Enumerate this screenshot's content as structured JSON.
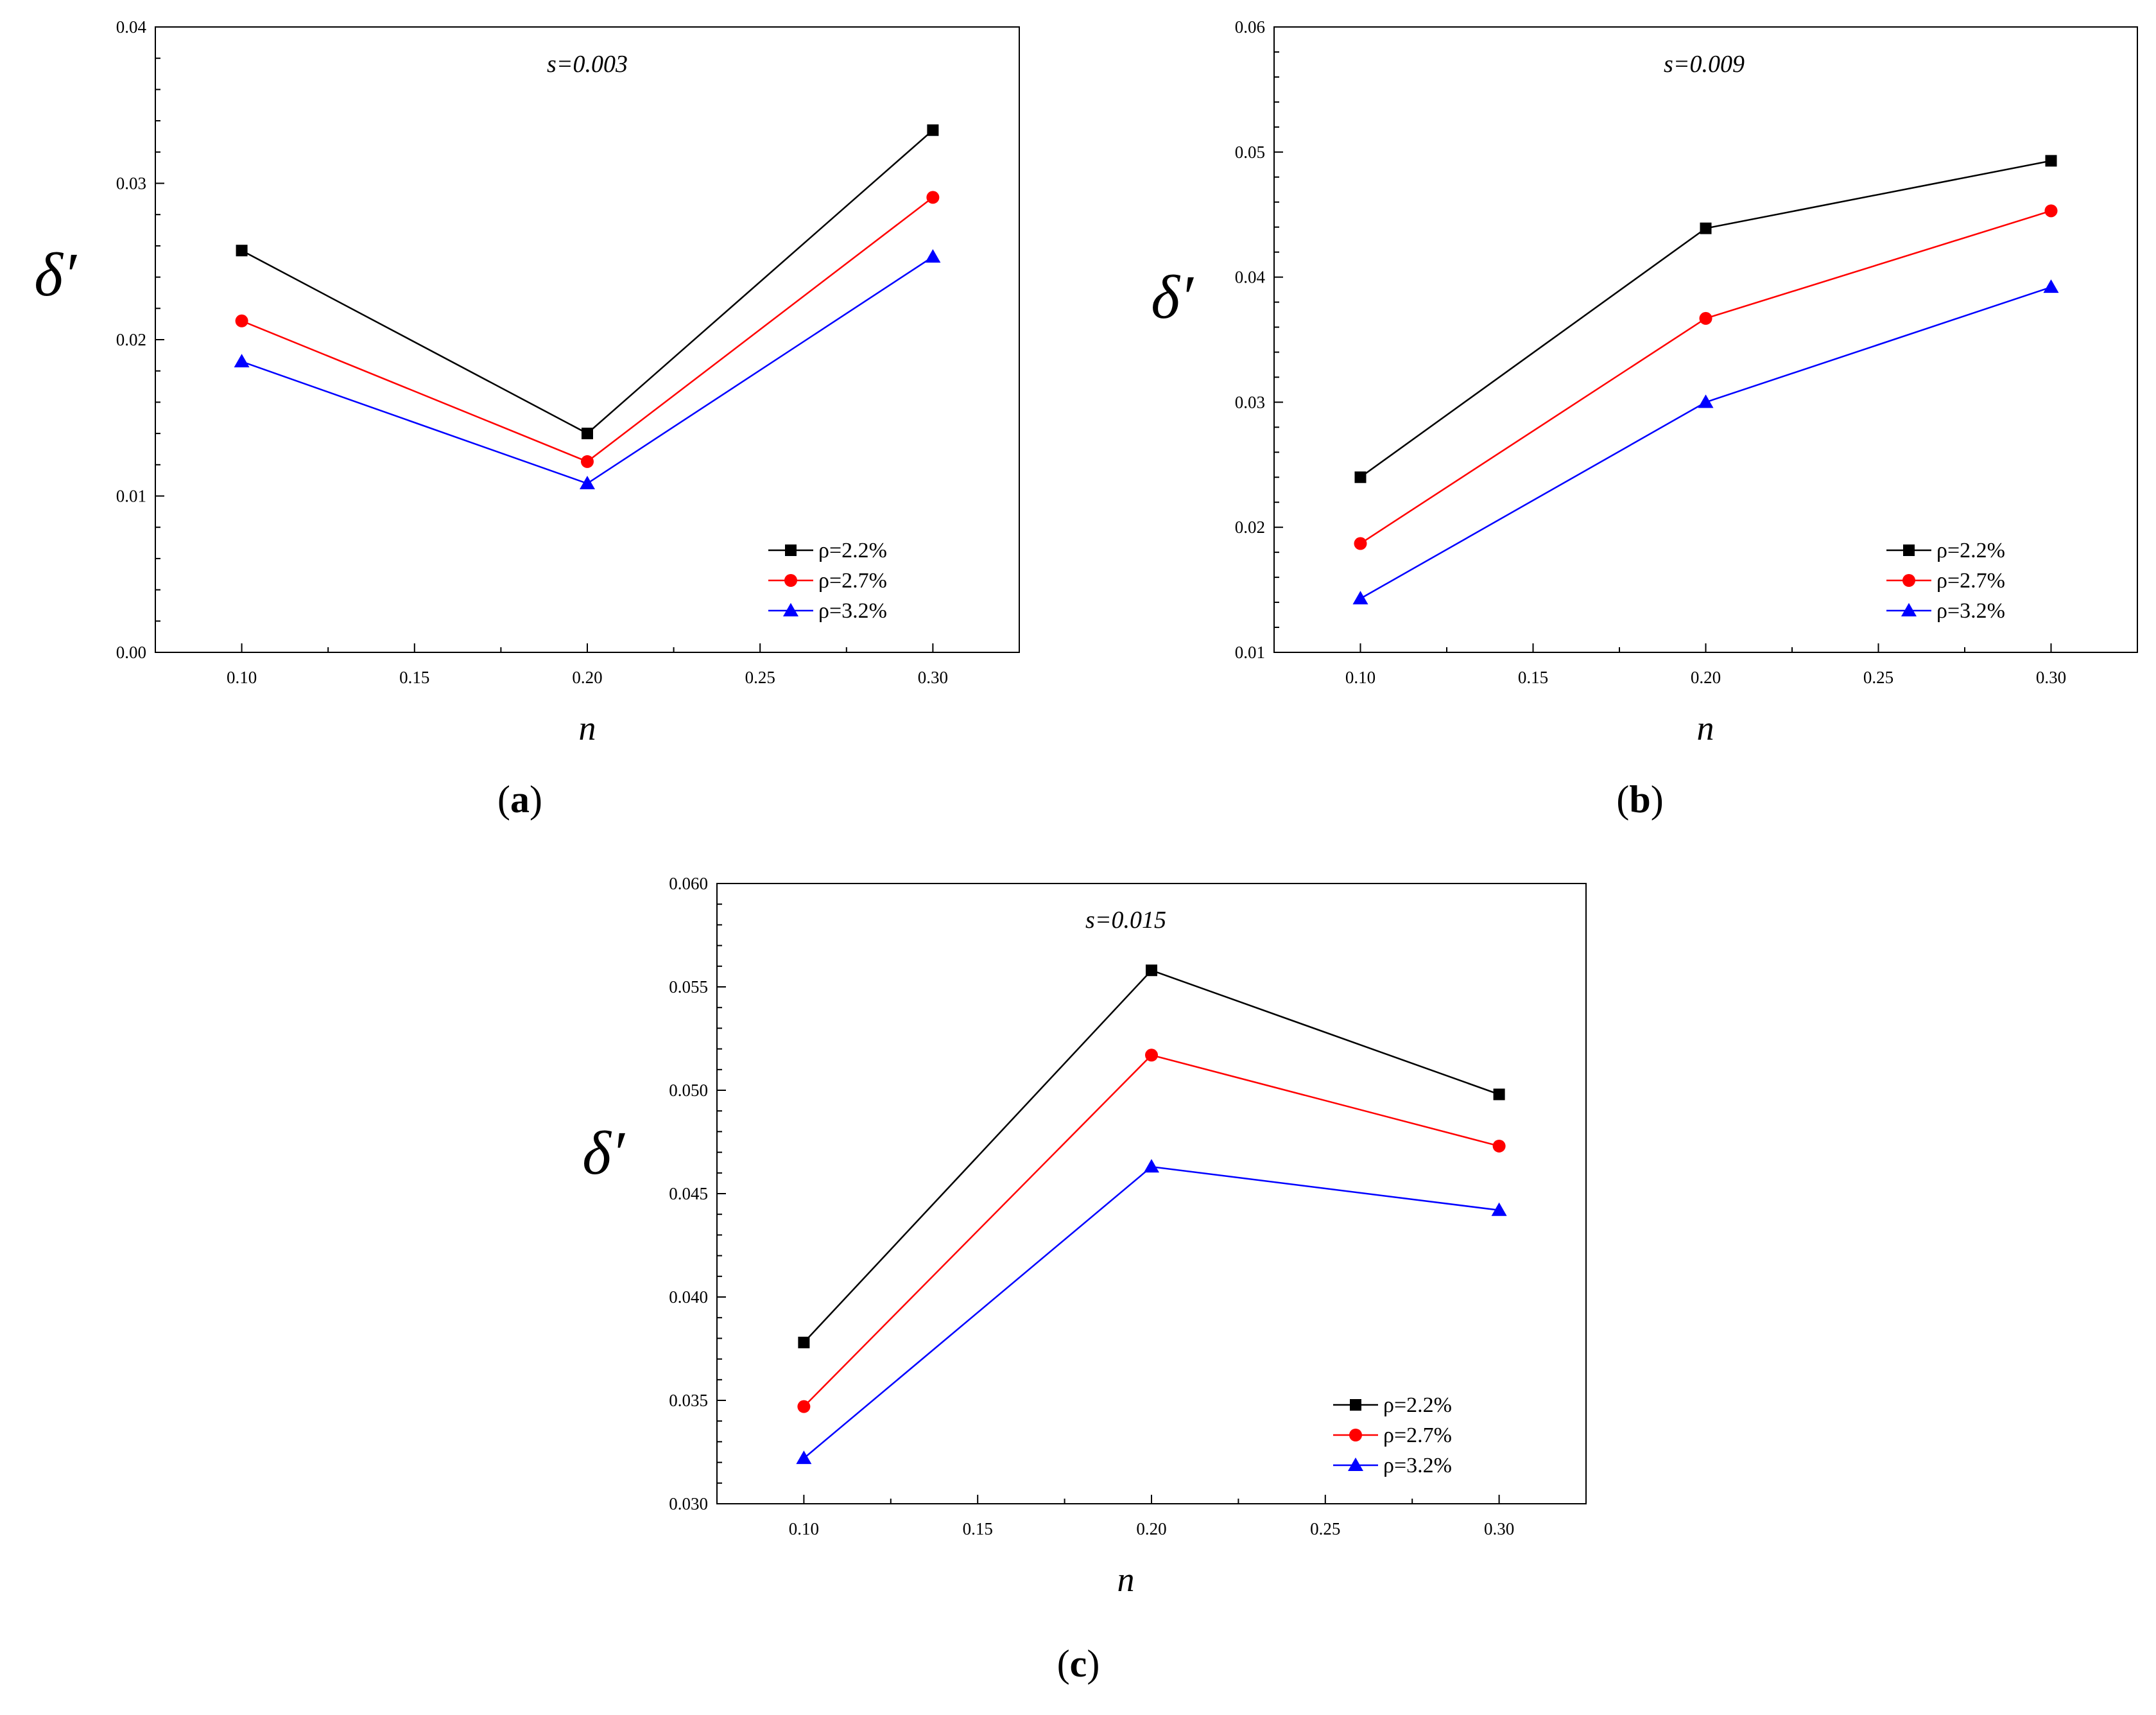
{
  "chart_data": [
    {
      "type": "line",
      "panel_label": "a",
      "annotation": "s=0.003",
      "xlabel": "n",
      "ylabel": "δ′",
      "x": [
        0.1,
        0.2,
        0.3
      ],
      "xticks": [
        "0.10",
        "0.15",
        "0.20",
        "0.25",
        "0.30"
      ],
      "xlim": [
        0.075,
        0.325
      ],
      "ylim": [
        0.0,
        0.04
      ],
      "yticks": [
        "0.00",
        "0.01",
        "0.02",
        "0.03",
        "0.04"
      ],
      "legend_position": "bottom-right",
      "series": [
        {
          "name": "ρ=2.2%",
          "color": "#000000",
          "marker": "square",
          "values": [
            0.0257,
            0.014,
            0.0334
          ]
        },
        {
          "name": "ρ=2.7%",
          "color": "#ff0000",
          "marker": "circle",
          "values": [
            0.0212,
            0.0122,
            0.0291
          ]
        },
        {
          "name": "ρ=3.2%",
          "color": "#0000ff",
          "marker": "triangle",
          "values": [
            0.0186,
            0.0108,
            0.0253
          ]
        }
      ]
    },
    {
      "type": "line",
      "panel_label": "b",
      "annotation": "s=0.009",
      "xlabel": "n",
      "ylabel": "δ′",
      "x": [
        0.1,
        0.2,
        0.3
      ],
      "xticks": [
        "0.10",
        "0.15",
        "0.20",
        "0.25",
        "0.30"
      ],
      "xlim": [
        0.075,
        0.325
      ],
      "ylim": [
        0.01,
        0.06
      ],
      "yticks": [
        "0.01",
        "0.02",
        "0.03",
        "0.04",
        "0.05",
        "0.06"
      ],
      "legend_position": "bottom-right",
      "series": [
        {
          "name": "ρ=2.2%",
          "color": "#000000",
          "marker": "square",
          "values": [
            0.024,
            0.0439,
            0.0493
          ]
        },
        {
          "name": "ρ=2.7%",
          "color": "#ff0000",
          "marker": "circle",
          "values": [
            0.0187,
            0.0367,
            0.0453
          ]
        },
        {
          "name": "ρ=3.2%",
          "color": "#0000ff",
          "marker": "triangle",
          "values": [
            0.0143,
            0.03,
            0.0392
          ]
        }
      ]
    },
    {
      "type": "line",
      "panel_label": "c",
      "annotation": "s=0.015",
      "xlabel": "n",
      "ylabel": "δ′",
      "x": [
        0.1,
        0.2,
        0.3
      ],
      "xticks": [
        "0.10",
        "0.15",
        "0.20",
        "0.25",
        "0.30"
      ],
      "xlim": [
        0.075,
        0.325
      ],
      "ylim": [
        0.03,
        0.06
      ],
      "yticks": [
        "0.030",
        "0.035",
        "0.040",
        "0.045",
        "0.050",
        "0.055",
        "0.060"
      ],
      "legend_position": "bottom-right",
      "series": [
        {
          "name": "ρ=2.2%",
          "color": "#000000",
          "marker": "square",
          "values": [
            0.0378,
            0.0558,
            0.0498
          ]
        },
        {
          "name": "ρ=2.7%",
          "color": "#ff0000",
          "marker": "circle",
          "values": [
            0.0347,
            0.0517,
            0.0473
          ]
        },
        {
          "name": "ρ=3.2%",
          "color": "#0000ff",
          "marker": "triangle",
          "values": [
            0.0322,
            0.0463,
            0.0442
          ]
        }
      ]
    }
  ]
}
